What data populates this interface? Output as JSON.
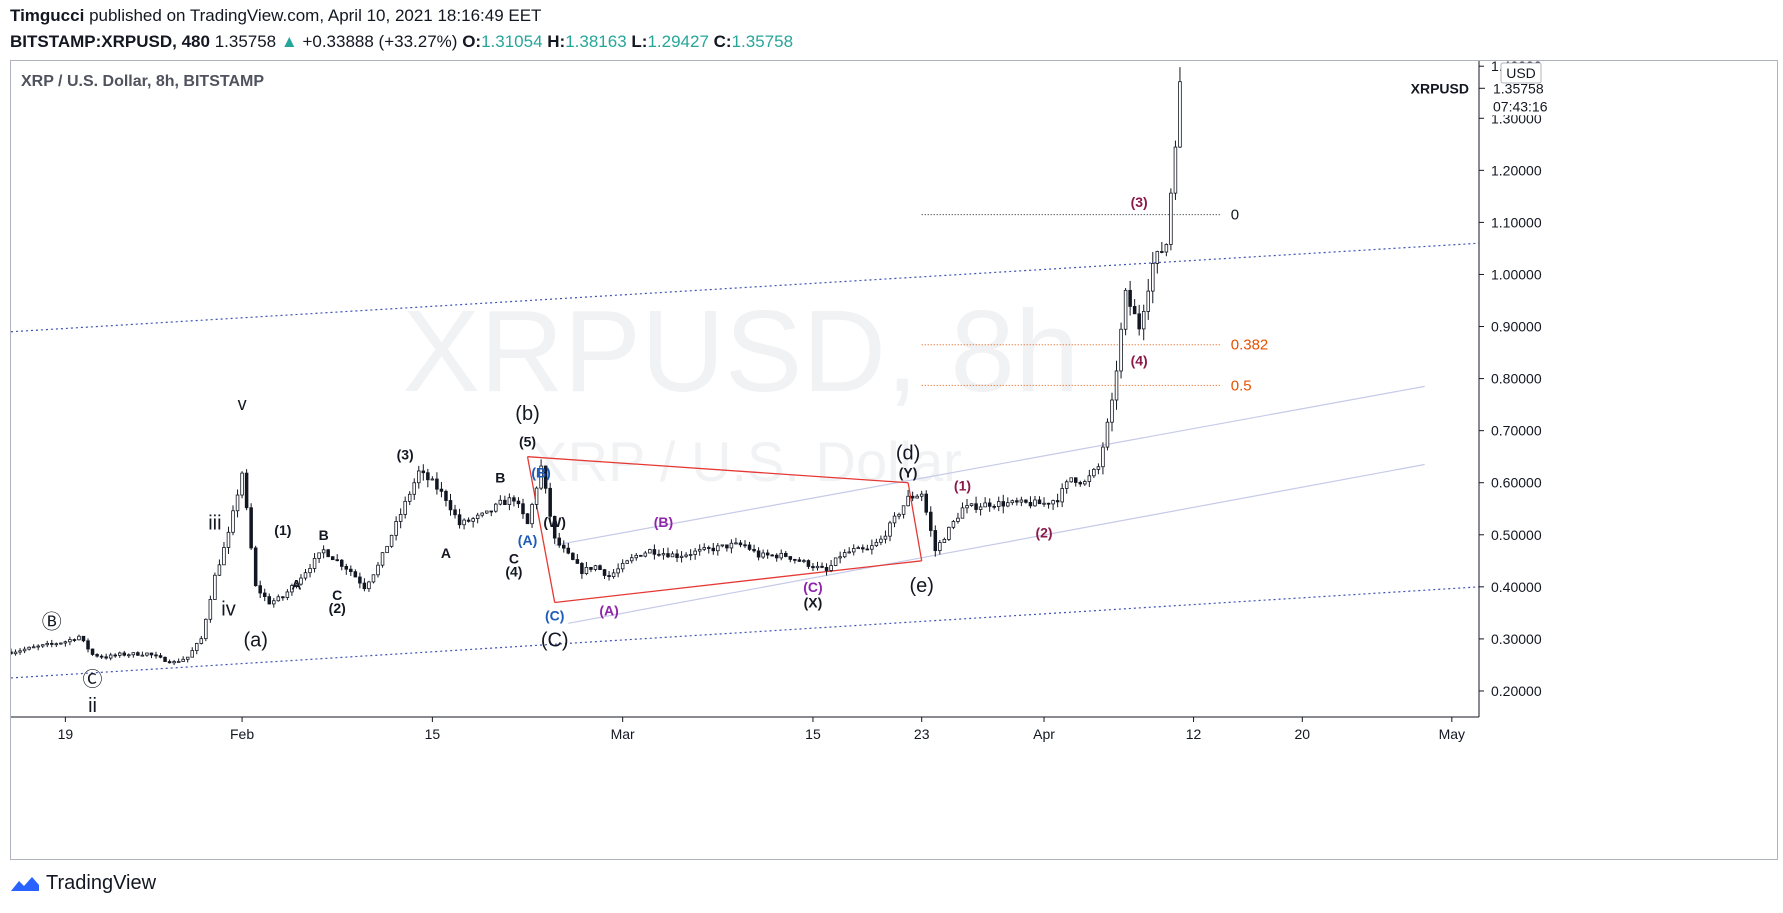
{
  "header": {
    "author": "Timgucci",
    "published": "published on TradingView.com, April 10, 2021 18:16:49 EET",
    "symbol": "BITSTAMP:XRPUSD, 480",
    "last": "1.35758",
    "change": "+0.33888 (+33.27%)",
    "o_label": "O:",
    "o_val": "1.31054",
    "h_label": "H:",
    "h_val": "1.38163",
    "l_label": "L:",
    "l_val": "1.29427",
    "c_label": "C:",
    "c_val": "1.35758",
    "up_color": "#26a69a"
  },
  "footer": {
    "brand": "TradingView",
    "logo_icon": "tradingview-logo-icon"
  },
  "chart_data": {
    "type": "candlestick",
    "title": "XRP / U.S. Dollar, 8h, BITSTAMP",
    "watermark": "XRPUSD, 8h",
    "watermark_sub": "XRP / U.S. Dollar",
    "currency": "USD",
    "price_label": "XRPUSD",
    "last_price": "1.35758",
    "countdown": "07:43:16",
    "ylim": [
      0.15,
      1.41
    ],
    "yticks": [
      "0.20000",
      "0.30000",
      "0.40000",
      "0.50000",
      "0.60000",
      "0.70000",
      "0.80000",
      "0.90000",
      "1.00000",
      "1.10000",
      "1.20000",
      "1.30000",
      "1.40000"
    ],
    "xlim": [
      "2021-01-15",
      "2021-05-03"
    ],
    "xticks": [
      {
        "date": "2021-01-19",
        "label": "19"
      },
      {
        "date": "2021-02-01",
        "label": "Feb"
      },
      {
        "date": "2021-02-15",
        "label": "15"
      },
      {
        "date": "2021-03-01",
        "label": "Mar"
      },
      {
        "date": "2021-03-15",
        "label": "15"
      },
      {
        "date": "2021-03-23",
        "label": "23"
      },
      {
        "date": "2021-04-01",
        "label": "Apr"
      },
      {
        "date": "2021-04-12",
        "label": "12"
      },
      {
        "date": "2021-04-20",
        "label": "20"
      },
      {
        "date": "2021-05-01",
        "label": "May"
      }
    ],
    "price_path": [
      [
        "2021-01-15",
        0.275
      ],
      [
        "2021-01-17",
        0.285
      ],
      [
        "2021-01-18",
        0.29
      ],
      [
        "2021-01-19",
        0.295
      ],
      [
        "2021-01-20",
        0.305
      ],
      [
        "2021-01-21",
        0.27
      ],
      [
        "2021-01-22",
        0.265
      ],
      [
        "2021-01-23",
        0.27
      ],
      [
        "2021-01-25",
        0.272
      ],
      [
        "2021-01-26",
        0.262
      ],
      [
        "2021-01-27",
        0.255
      ],
      [
        "2021-01-28",
        0.265
      ],
      [
        "2021-01-29",
        0.3
      ],
      [
        "2021-01-30",
        0.42
      ],
      [
        "2021-01-31",
        0.5
      ],
      [
        "2021-02-01",
        0.62
      ],
      [
        "2021-02-02",
        0.4
      ],
      [
        "2021-02-03",
        0.37
      ],
      [
        "2021-02-04",
        0.38
      ],
      [
        "2021-02-05",
        0.41
      ],
      [
        "2021-02-06",
        0.44
      ],
      [
        "2021-02-07",
        0.47
      ],
      [
        "2021-02-08",
        0.45
      ],
      [
        "2021-02-09",
        0.43
      ],
      [
        "2021-02-10",
        0.4
      ],
      [
        "2021-02-11",
        0.44
      ],
      [
        "2021-02-12",
        0.5
      ],
      [
        "2021-02-13",
        0.56
      ],
      [
        "2021-02-14",
        0.62
      ],
      [
        "2021-02-15",
        0.6
      ],
      [
        "2021-02-16",
        0.57
      ],
      [
        "2021-02-17",
        0.52
      ],
      [
        "2021-02-18",
        0.53
      ],
      [
        "2021-02-19",
        0.54
      ],
      [
        "2021-02-20",
        0.56
      ],
      [
        "2021-02-21",
        0.57
      ],
      [
        "2021-02-22",
        0.52
      ],
      [
        "2021-02-23",
        0.63
      ],
      [
        "2021-02-24",
        0.49
      ],
      [
        "2021-02-25",
        0.46
      ],
      [
        "2021-02-26",
        0.43
      ],
      [
        "2021-02-27",
        0.44
      ],
      [
        "2021-02-28",
        0.42
      ],
      [
        "2021-03-01",
        0.44
      ],
      [
        "2021-03-02",
        0.46
      ],
      [
        "2021-03-03",
        0.47
      ],
      [
        "2021-03-05",
        0.46
      ],
      [
        "2021-03-07",
        0.47
      ],
      [
        "2021-03-09",
        0.48
      ],
      [
        "2021-03-10",
        0.48
      ],
      [
        "2021-03-11",
        0.46
      ],
      [
        "2021-03-13",
        0.46
      ],
      [
        "2021-03-14",
        0.45
      ],
      [
        "2021-03-15",
        0.44
      ],
      [
        "2021-03-16",
        0.43
      ],
      [
        "2021-03-17",
        0.46
      ],
      [
        "2021-03-18",
        0.47
      ],
      [
        "2021-03-19",
        0.47
      ],
      [
        "2021-03-20",
        0.49
      ],
      [
        "2021-03-21",
        0.53
      ],
      [
        "2021-03-22",
        0.57
      ],
      [
        "2021-03-23",
        0.58
      ],
      [
        "2021-03-24",
        0.47
      ],
      [
        "2021-03-25",
        0.51
      ],
      [
        "2021-03-26",
        0.55
      ],
      [
        "2021-03-28",
        0.56
      ],
      [
        "2021-03-30",
        0.56
      ],
      [
        "2021-04-01",
        0.56
      ],
      [
        "2021-04-02",
        0.57
      ],
      [
        "2021-04-03",
        0.61
      ],
      [
        "2021-04-04",
        0.6
      ],
      [
        "2021-04-05",
        0.63
      ],
      [
        "2021-04-06",
        0.75
      ],
      [
        "2021-04-07",
        0.96
      ],
      [
        "2021-04-08",
        0.9
      ],
      [
        "2021-04-09",
        1.02
      ],
      [
        "2021-04-10",
        1.06
      ],
      [
        "2021-04-11",
        1.36
      ]
    ],
    "annotations": [
      {
        "d": "2021-01-18",
        "y": 0.32,
        "t": "Ⓑ",
        "c": "#131722",
        "s": 20
      },
      {
        "d": "2021-01-21",
        "y": 0.21,
        "t": "Ⓒ",
        "c": "#131722",
        "s": 20
      },
      {
        "d": "2021-01-21",
        "y": 0.16,
        "t": "ii",
        "c": "#131722",
        "s": 20
      },
      {
        "d": "2021-01-30",
        "y": 0.51,
        "t": "iii",
        "c": "#131722",
        "s": 20
      },
      {
        "d": "2021-01-31",
        "y": 0.345,
        "t": "iv",
        "c": "#131722",
        "s": 20
      },
      {
        "d": "2021-02-01",
        "y": 0.74,
        "t": "v",
        "c": "#131722",
        "s": 18
      },
      {
        "d": "2021-02-02",
        "y": 0.285,
        "t": "(a)",
        "c": "#131722",
        "s": 20
      },
      {
        "d": "2021-02-04",
        "y": 0.5,
        "t": "(1)",
        "c": "#131722",
        "s": 14
      },
      {
        "d": "2021-02-05",
        "y": 0.395,
        "t": "A",
        "c": "#131722",
        "s": 14
      },
      {
        "d": "2021-02-07",
        "y": 0.49,
        "t": "B",
        "c": "#131722",
        "s": 14
      },
      {
        "d": "2021-02-08",
        "y": 0.375,
        "t": "C",
        "c": "#131722",
        "s": 14
      },
      {
        "d": "2021-02-08",
        "y": 0.35,
        "t": "(2)",
        "c": "#131722",
        "s": 14
      },
      {
        "d": "2021-02-13",
        "y": 0.645,
        "t": "(3)",
        "c": "#131722",
        "s": 14
      },
      {
        "d": "2021-02-16",
        "y": 0.455,
        "t": "A",
        "c": "#131722",
        "s": 14
      },
      {
        "d": "2021-02-20",
        "y": 0.6,
        "t": "B",
        "c": "#131722",
        "s": 14
      },
      {
        "d": "2021-02-21",
        "y": 0.445,
        "t": "C",
        "c": "#131722",
        "s": 14
      },
      {
        "d": "2021-02-21",
        "y": 0.42,
        "t": "(4)",
        "c": "#131722",
        "s": 14
      },
      {
        "d": "2021-02-22",
        "y": 0.72,
        "t": "(b)",
        "c": "#131722",
        "s": 20
      },
      {
        "d": "2021-02-22",
        "y": 0.67,
        "t": "(5)",
        "c": "#131722",
        "s": 14
      },
      {
        "d": "2021-02-23",
        "y": 0.61,
        "t": "(B)",
        "c": "#1e5bb8",
        "s": 14
      },
      {
        "d": "2021-02-22",
        "y": 0.48,
        "t": "(A)",
        "c": "#1e5bb8",
        "s": 14
      },
      {
        "d": "2021-02-24",
        "y": 0.515,
        "t": "(W)",
        "c": "#131722",
        "s": 14
      },
      {
        "d": "2021-02-24",
        "y": 0.335,
        "t": "(C)",
        "c": "#1e5bb8",
        "s": 14
      },
      {
        "d": "2021-02-24",
        "y": 0.285,
        "t": "(C)",
        "c": "#131722",
        "s": 20
      },
      {
        "d": "2021-02-28",
        "y": 0.345,
        "t": "(A)",
        "c": "#8e24aa",
        "s": 14
      },
      {
        "d": "2021-03-04",
        "y": 0.515,
        "t": "(B)",
        "c": "#8e24aa",
        "s": 14
      },
      {
        "d": "2021-03-15",
        "y": 0.39,
        "t": "(C)",
        "c": "#8e24aa",
        "s": 14
      },
      {
        "d": "2021-03-15",
        "y": 0.36,
        "t": "(X)",
        "c": "#131722",
        "s": 14
      },
      {
        "d": "2021-03-22",
        "y": 0.645,
        "t": "(d)",
        "c": "#131722",
        "s": 20
      },
      {
        "d": "2021-03-22",
        "y": 0.61,
        "t": "(Y)",
        "c": "#131722",
        "s": 14
      },
      {
        "d": "2021-03-23",
        "y": 0.39,
        "t": "(e)",
        "c": "#131722",
        "s": 20
      },
      {
        "d": "2021-03-26",
        "y": 0.585,
        "t": "(1)",
        "c": "#8b1a4a",
        "s": 14
      },
      {
        "d": "2021-04-01",
        "y": 0.495,
        "t": "(2)",
        "c": "#8b1a4a",
        "s": 14
      },
      {
        "d": "2021-04-08",
        "y": 1.13,
        "t": "(3)",
        "c": "#8b1a4a",
        "s": 14
      },
      {
        "d": "2021-04-08",
        "y": 0.825,
        "t": "(4)",
        "c": "#8b1a4a",
        "s": 14
      }
    ],
    "fib_levels": [
      {
        "label": "0",
        "y": 1.115,
        "c": "#131722"
      },
      {
        "label": "0.382",
        "y": 0.865,
        "c": "#e65100"
      },
      {
        "label": "0.5",
        "y": 0.787,
        "c": "#e65100"
      }
    ],
    "fib_range": [
      "2021-03-23",
      "2021-04-14"
    ],
    "channel_outer": [
      {
        "from": [
          "2021-01-15",
          0.89
        ],
        "to": [
          "2021-05-03",
          1.06
        ]
      },
      {
        "from": [
          "2021-01-15",
          0.225
        ],
        "to": [
          "2021-05-03",
          0.4
        ]
      }
    ],
    "channel_inner": [
      {
        "from": [
          "2021-02-24",
          0.48
        ],
        "to": [
          "2021-04-29",
          0.785
        ]
      },
      {
        "from": [
          "2021-02-25",
          0.33
        ],
        "to": [
          "2021-04-29",
          0.635
        ]
      }
    ],
    "triangle": {
      "upper": [
        [
          "2021-02-22",
          0.65
        ],
        [
          "2021-03-22",
          0.6
        ]
      ],
      "lower": [
        [
          "2021-02-24",
          0.37
        ],
        [
          "2021-03-23",
          0.45
        ]
      ],
      "color": "#e53935"
    }
  }
}
